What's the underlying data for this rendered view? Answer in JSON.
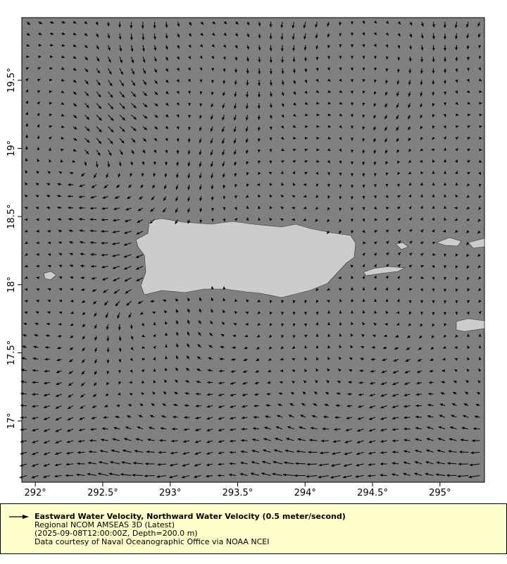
{
  "chart_data": {
    "type": "vector-map",
    "x_ticks": [
      "292°",
      "292.5°",
      "293°",
      "293.5°",
      "294°",
      "294.5°",
      "295°"
    ],
    "x_values": [
      292,
      292.5,
      293,
      293.5,
      294,
      294.5,
      295
    ],
    "y_ticks": [
      "19.5°",
      "19°",
      "18.5°",
      "18°",
      "17.5°",
      "17°"
    ],
    "y_values": [
      19.5,
      19,
      18.5,
      18,
      17.5,
      17
    ],
    "xlim": [
      291.9,
      295.33
    ],
    "ylim": [
      16.55,
      19.96
    ],
    "colors": {
      "ocean": "#808080",
      "land": "#cccccc",
      "arrow": "#000000",
      "legend_bg": "#ffffcc"
    }
  },
  "legend": {
    "title": "Eastward Water Velocity, Northward Water Velocity (0.5 meter/second)",
    "line1": "Regional NCOM AMSEAS 3D (Latest)",
    "line2": "(2025-09-08T12:00:00Z, Depth=200.0 m)",
    "line3": "Data courtesy of Naval Oceanographic Office via NOAA NCEI"
  }
}
